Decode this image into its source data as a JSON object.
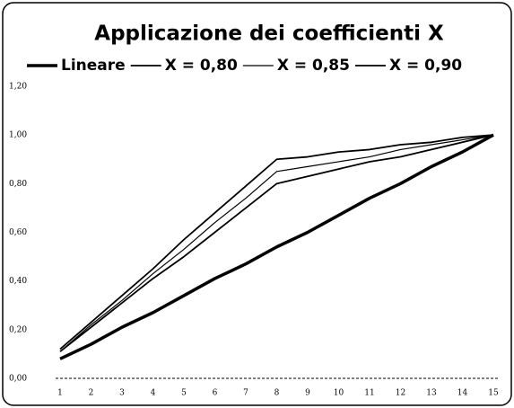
{
  "chart_data": {
    "type": "line",
    "title": "Applicazione dei coefficienti  X",
    "categories": [
      1,
      2,
      3,
      4,
      5,
      6,
      7,
      8,
      9,
      10,
      11,
      12,
      13,
      14,
      15
    ],
    "series": [
      {
        "name": "Lineare",
        "color": "#000000",
        "line_width": 3.5,
        "values": [
          0.08,
          0.14,
          0.21,
          0.27,
          0.34,
          0.41,
          0.47,
          0.54,
          0.6,
          0.67,
          0.74,
          0.8,
          0.87,
          0.93,
          1.0
        ]
      },
      {
        "name": "X = 0,80",
        "color": "#000000",
        "line_width": 1.8,
        "values": [
          0.11,
          0.21,
          0.31,
          0.41,
          0.5,
          0.6,
          0.7,
          0.8,
          0.83,
          0.86,
          0.89,
          0.91,
          0.94,
          0.97,
          1.0
        ]
      },
      {
        "name": "X = 0,85",
        "color": "#000000",
        "line_width": 1.2,
        "values": [
          0.11,
          0.22,
          0.32,
          0.43,
          0.53,
          0.64,
          0.74,
          0.85,
          0.87,
          0.89,
          0.91,
          0.94,
          0.96,
          0.98,
          1.0
        ]
      },
      {
        "name": "X = 0,90",
        "color": "#000000",
        "line_width": 1.8,
        "values": [
          0.12,
          0.23,
          0.34,
          0.45,
          0.57,
          0.68,
          0.79,
          0.9,
          0.91,
          0.93,
          0.94,
          0.96,
          0.97,
          0.99,
          1.0
        ]
      }
    ],
    "ylim": [
      0,
      1.2
    ],
    "yticks": [
      {
        "value": 0,
        "label": "0,00"
      },
      {
        "value": 0.2,
        "label": "0,20"
      },
      {
        "value": 0.4,
        "label": "0,40"
      },
      {
        "value": 0.6,
        "label": "0,60"
      },
      {
        "value": 0.8,
        "label": "0,80"
      },
      {
        "value": 1.0,
        "label": "1,00"
      },
      {
        "value": 1.2,
        "label": "1,20"
      }
    ],
    "legend": "top"
  }
}
